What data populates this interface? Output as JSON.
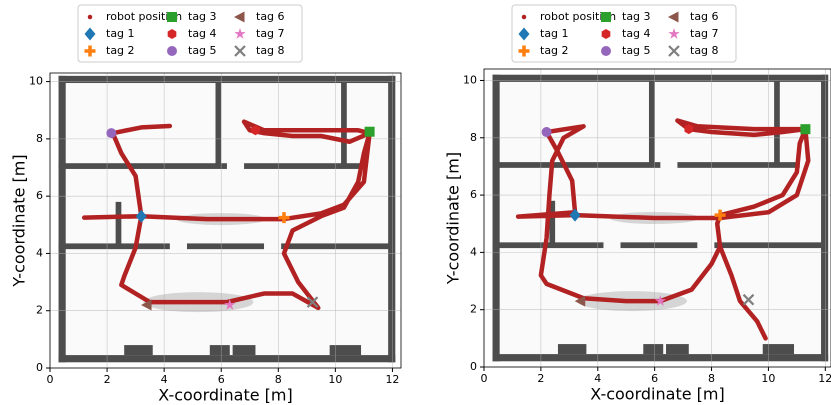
{
  "chart_data": [
    {
      "type": "scatter",
      "xlabel": "X-coordinate [m]",
      "ylabel": "Y-coordinate [m]",
      "xlim": [
        0,
        12.3
      ],
      "ylim": [
        0,
        10.3
      ],
      "xticks": [
        0,
        2,
        4,
        6,
        8,
        10,
        12
      ],
      "yticks": [
        0,
        2,
        4,
        6,
        8,
        10
      ],
      "grid": true,
      "series": [
        {
          "name": "robot position",
          "color": "#b22222",
          "marker": "trajectory",
          "x": [
            4.2,
            3.2,
            2.2,
            2.5,
            3.0,
            3.2,
            3.0,
            2.6,
            2.5,
            3.5,
            5.0,
            6.2,
            7.5,
            8.5,
            9.4,
            8.7,
            8.2,
            8.5,
            9.5,
            10.3,
            10.8,
            11.0,
            11.2,
            10.5,
            9.5,
            8.5,
            7.5,
            7.0,
            6.8,
            7.5,
            9.0,
            10.8,
            11.2,
            11.0,
            10.3,
            9.5,
            8.2,
            5.5,
            3.2,
            1.2
          ],
          "y": [
            8.45,
            8.4,
            8.2,
            7.5,
            6.7,
            5.3,
            4.2,
            3.2,
            2.9,
            2.3,
            2.3,
            2.3,
            2.6,
            2.6,
            2.1,
            3.0,
            4.0,
            4.8,
            5.3,
            5.6,
            6.5,
            7.5,
            8.2,
            7.9,
            8.1,
            8.1,
            8.2,
            8.3,
            8.6,
            8.3,
            8.3,
            8.3,
            8.2,
            6.5,
            5.7,
            5.4,
            5.2,
            5.2,
            5.3,
            5.25
          ]
        },
        {
          "name": "tag 1",
          "color": "#1f77b4",
          "marker": "diamond",
          "x": [
            3.2
          ],
          "y": [
            5.3
          ]
        },
        {
          "name": "tag 2",
          "color": "#ff7f0e",
          "marker": "plus",
          "x": [
            8.2
          ],
          "y": [
            5.25
          ]
        },
        {
          "name": "tag 3",
          "color": "#2ca02c",
          "marker": "square",
          "x": [
            11.2
          ],
          "y": [
            8.25
          ]
        },
        {
          "name": "tag 4",
          "color": "#d62728",
          "marker": "hexagon",
          "x": [
            7.2
          ],
          "y": [
            8.3
          ]
        },
        {
          "name": "tag 5",
          "color": "#9467bd",
          "marker": "circle",
          "x": [
            2.15
          ],
          "y": [
            8.2
          ]
        },
        {
          "name": "tag 6",
          "color": "#8c564b",
          "marker": "triangle-left",
          "x": [
            3.4
          ],
          "y": [
            2.2
          ]
        },
        {
          "name": "tag 7",
          "color": "#e377c2",
          "marker": "star",
          "x": [
            6.3
          ],
          "y": [
            2.2
          ]
        },
        {
          "name": "tag 8",
          "color": "#7f7f7f",
          "marker": "x",
          "x": [
            9.2
          ],
          "y": [
            2.3
          ]
        }
      ]
    },
    {
      "type": "scatter",
      "xlabel": "X-coordinate [m]",
      "ylabel": "Y-coordinate [m]",
      "xlim": [
        0,
        12.2
      ],
      "ylim": [
        0,
        10.4
      ],
      "xticks": [
        0,
        2,
        4,
        6,
        8,
        10,
        12
      ],
      "yticks": [
        0,
        2,
        4,
        6,
        8,
        10
      ],
      "grid": true,
      "series": [
        {
          "name": "robot position",
          "color": "#b22222",
          "marker": "trajectory",
          "x": [
            9.9,
            9.6,
            9.0,
            8.7,
            8.3,
            8.2,
            8.3,
            9.5,
            10.5,
            11.0,
            11.1,
            11.3,
            10.5,
            9.5,
            8.0,
            7.2,
            6.8,
            7.5,
            9.5,
            11.0,
            11.3,
            11.4,
            11.0,
            10.0,
            8.3,
            6.0,
            3.2,
            1.2,
            3.2,
            3.1,
            2.6,
            2.2,
            3.5,
            2.8,
            2.4,
            2.3,
            2.2,
            2.0,
            2.2,
            3.5,
            5.0,
            6.2,
            7.3,
            8.0,
            8.3
          ],
          "y": [
            1.0,
            1.6,
            2.3,
            3.2,
            4.2,
            5.0,
            5.3,
            5.6,
            6.0,
            6.8,
            7.8,
            8.3,
            8.2,
            8.1,
            8.2,
            8.3,
            8.6,
            8.4,
            8.3,
            8.3,
            8.3,
            7.2,
            6.0,
            5.4,
            5.2,
            5.2,
            5.3,
            5.25,
            5.4,
            6.5,
            7.5,
            8.2,
            8.4,
            8.0,
            7.2,
            6.0,
            4.5,
            3.2,
            2.9,
            2.4,
            2.3,
            2.3,
            2.7,
            3.6,
            4.2
          ]
        },
        {
          "name": "tag 1",
          "color": "#1f77b4",
          "marker": "diamond",
          "x": [
            3.2
          ],
          "y": [
            5.3
          ]
        },
        {
          "name": "tag 2",
          "color": "#ff7f0e",
          "marker": "plus",
          "x": [
            8.3
          ],
          "y": [
            5.3
          ]
        },
        {
          "name": "tag 3",
          "color": "#2ca02c",
          "marker": "square",
          "x": [
            11.3
          ],
          "y": [
            8.3
          ]
        },
        {
          "name": "tag 4",
          "color": "#d62728",
          "marker": "hexagon",
          "x": [
            7.2
          ],
          "y": [
            8.3
          ]
        },
        {
          "name": "tag 5",
          "color": "#9467bd",
          "marker": "circle",
          "x": [
            2.2
          ],
          "y": [
            8.2
          ]
        },
        {
          "name": "tag 6",
          "color": "#8c564b",
          "marker": "triangle-left",
          "x": [
            3.4
          ],
          "y": [
            2.3
          ]
        },
        {
          "name": "tag 7",
          "color": "#e377c2",
          "marker": "star",
          "x": [
            6.2
          ],
          "y": [
            2.3
          ]
        },
        {
          "name": "tag 8",
          "color": "#7f7f7f",
          "marker": "x",
          "x": [
            9.3
          ],
          "y": [
            2.35
          ]
        }
      ]
    }
  ]
}
